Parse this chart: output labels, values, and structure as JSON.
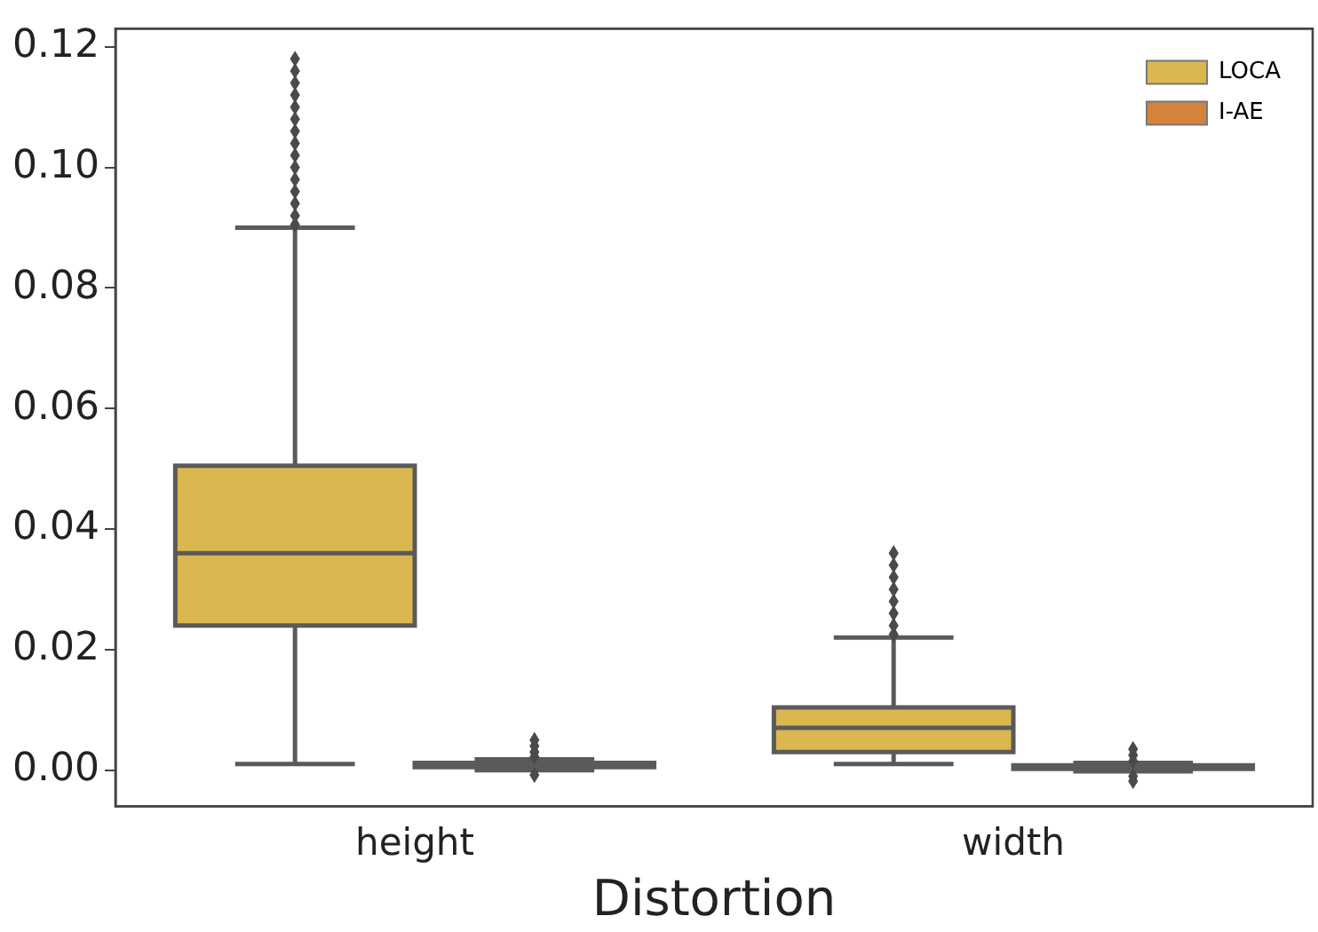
{
  "chart_data": {
    "type": "box",
    "xlabel": "Distortion",
    "categories": [
      "height",
      "width"
    ],
    "ylim": [
      -0.006,
      0.123
    ],
    "yticks": [
      {
        "value": 0,
        "label": "0.00"
      },
      {
        "value": 0.02,
        "label": "0.02"
      },
      {
        "value": 0.04,
        "label": "0.04"
      },
      {
        "value": 0.06,
        "label": "0.06"
      },
      {
        "value": 0.08,
        "label": "0.08"
      },
      {
        "value": 0.1,
        "label": "0.10"
      },
      {
        "value": 0.12,
        "label": "0.12"
      }
    ],
    "grid": false,
    "legend": "top right",
    "marker": "diamond",
    "series": [
      {
        "name": "LOCA",
        "color": "#dbb74f",
        "boxes": [
          {
            "low": 0.001,
            "q1": 0.024,
            "median": 0.036,
            "q3": 0.0505,
            "high": 0.09,
            "outliers": [
              0.0905,
              0.092,
              0.094,
              0.096,
              0.098,
              0.1,
              0.102,
              0.104,
              0.106,
              0.108,
              0.11,
              0.112,
              0.114,
              0.116,
              0.118
            ]
          },
          {
            "low": 0.001,
            "q1": 0.003,
            "median": 0.007,
            "q3": 0.0104,
            "high": 0.022,
            "outliers": [
              0.0225,
              0.024,
              0.026,
              0.028,
              0.03,
              0.032,
              0.034,
              0.036
            ]
          }
        ]
      },
      {
        "name": "I-AE",
        "color": "#d4843a",
        "boxes": [
          {
            "low": 0,
            "q1": 0.0005,
            "median": 0.0008,
            "q3": 0.0012,
            "high": 0.0018,
            "outliers": [
              -0.0008,
              0.0022,
              0.003,
              0.004,
              0.005
            ]
          },
          {
            "low": -0.0002,
            "q1": 0.0002,
            "median": 0.0005,
            "q3": 0.0008,
            "high": 0.0012,
            "outliers": [
              -0.0018,
              -0.001,
              0.0015,
              0.0025,
              0.0035
            ]
          }
        ]
      }
    ]
  }
}
